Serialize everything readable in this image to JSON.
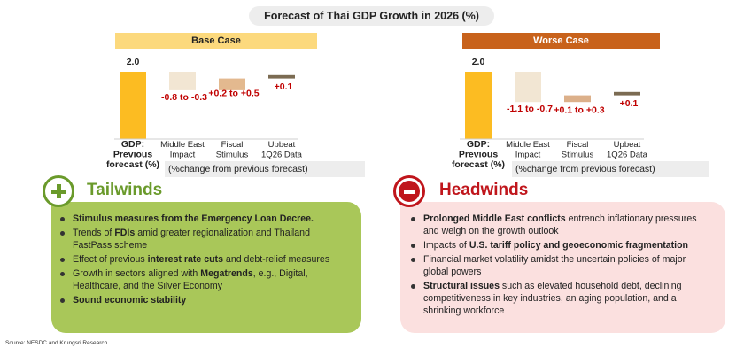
{
  "title": "Forecast of Thai GDP Growth in 2026 (%)",
  "source": "Source: NESDC and Krungsri Research",
  "note": "(%change from previous forecast)",
  "colors": {
    "base_header": "#fcd97d",
    "worse_header": "#c8621b",
    "gdp_bar": "#fcbc22",
    "negative_bar": "#f2e6d3",
    "fiscal_base": "#e3b98f",
    "fiscal_worse": "#dcb08a",
    "upbeat_bar": "#7b6b52",
    "label_red": "#c00000",
    "tailwinds_green": "#6a9a2b",
    "headwinds_red": "#c0161c"
  },
  "chart_data": [
    {
      "type": "bar",
      "subtype": "waterfall",
      "title": "Base Case",
      "categories": [
        "GDP: Previous forecast (%)",
        "Middle East Impact",
        "Fiscal Stimulus",
        "Upbeat 1Q26 Data"
      ],
      "tick_labels": [
        [
          "GDP:",
          "Previous",
          "forecast (%)"
        ],
        [
          "Middle East",
          "Impact"
        ],
        [
          "Fiscal",
          "Stimulus"
        ],
        [
          "Upbeat",
          "1Q26 Data"
        ]
      ],
      "values": [
        2.0,
        -0.55,
        0.35,
        0.1
      ],
      "data_labels": [
        "2.0",
        "-0.8 to -0.3",
        "+0.2 to +0.5",
        "+0.1"
      ]
    },
    {
      "type": "bar",
      "subtype": "waterfall",
      "title": "Worse Case",
      "categories": [
        "GDP: Previous forecast (%)",
        "Middle East Impact",
        "Fiscal Stimulus",
        "Upbeat 1Q26 Data"
      ],
      "tick_labels": [
        [
          "GDP:",
          "Previous",
          "forecast (%)"
        ],
        [
          "Middle East",
          "Impact"
        ],
        [
          "Fiscal",
          "Stimulus"
        ],
        [
          "Upbeat",
          "1Q26 Data"
        ]
      ],
      "values": [
        2.0,
        -0.9,
        0.2,
        0.1
      ],
      "data_labels": [
        "2.0",
        "-1.1 to -0.7",
        "+0.1 to +0.3",
        "+0.1"
      ]
    }
  ],
  "tailwinds": {
    "title": "Tailwinds",
    "items": [
      [
        {
          "t": "Stimulus measures from the Emergency Loan Decree.",
          "b": true
        }
      ],
      [
        {
          "t": "Trends of ",
          "b": false
        },
        {
          "t": "FDIs",
          "b": true
        },
        {
          "t": " amid greater regionalization and Thailand FastPass  scheme",
          "b": false
        }
      ],
      [
        {
          "t": "Effect of previous ",
          "b": false
        },
        {
          "t": "interest rate cuts",
          "b": true
        },
        {
          "t": " and debt-relief measures",
          "b": false
        }
      ],
      [
        {
          "t": "Growth in sectors aligned with ",
          "b": false
        },
        {
          "t": "Megatrends",
          "b": true
        },
        {
          "t": ", e.g., Digital, Healthcare, and the Silver Economy",
          "b": false
        }
      ],
      [
        {
          "t": "Sound economic stability",
          "b": true
        }
      ]
    ]
  },
  "headwinds": {
    "title": "Headwinds",
    "items": [
      [
        {
          "t": "Prolonged Middle East conflicts",
          "b": true
        },
        {
          "t": " entrench inflationary pressures and weigh on the growth outlook",
          "b": false
        }
      ],
      [
        {
          "t": "Impacts of ",
          "b": false
        },
        {
          "t": "U.S. tariff policy and geoeconomic fragmentation",
          "b": true
        }
      ],
      [
        {
          "t": "Financial market volatility amidst the uncertain policies of major global powers",
          "b": false
        }
      ],
      [
        {
          "t": "Structural issues",
          "b": true
        },
        {
          "t": " such as elevated household debt, declining competitiveness in key industries, an aging population, and a shrinking workforce",
          "b": false
        }
      ]
    ]
  }
}
